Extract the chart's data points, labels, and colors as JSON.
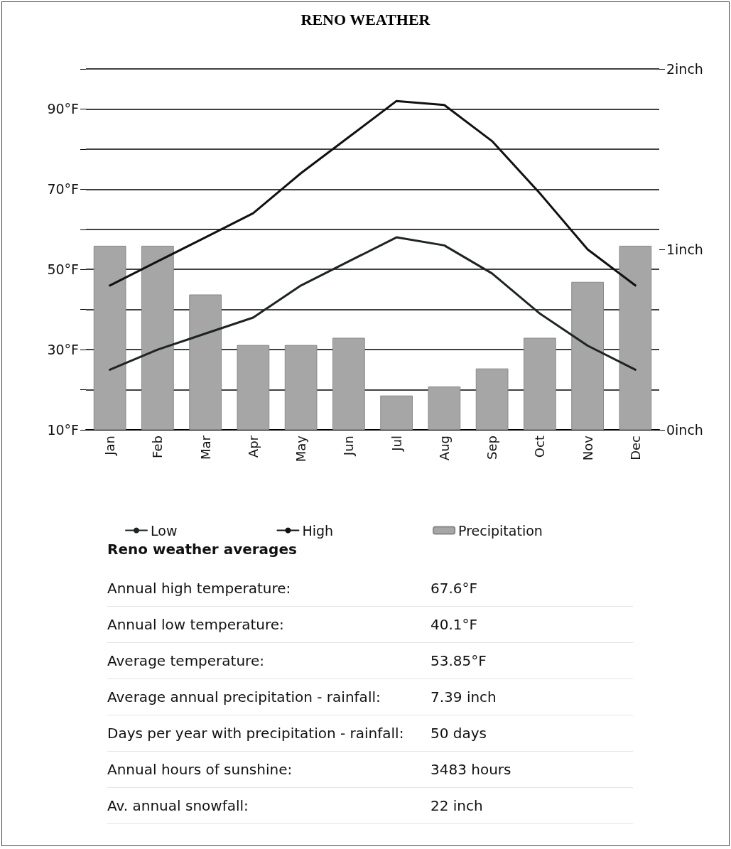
{
  "chart_data": {
    "type": "line",
    "title": "RENO WEATHER",
    "categories": [
      "Jan",
      "Feb",
      "Mar",
      "Apr",
      "May",
      "Jun",
      "Jul",
      "Aug",
      "Sep",
      "Oct",
      "Nov",
      "Dec"
    ],
    "series": [
      {
        "name": "Low",
        "color": "#1e2424",
        "values": [
          25,
          30,
          34,
          38,
          46,
          52,
          58,
          56,
          49,
          39,
          31,
          25
        ]
      },
      {
        "name": "High",
        "color": "#111111",
        "values": [
          46,
          52,
          58,
          64,
          74,
          83,
          92,
          91,
          82,
          69,
          55,
          46
        ]
      },
      {
        "name": "Precipitation",
        "type": "bar",
        "axis": "y2",
        "color": "#a6a6a6",
        "values": [
          1.02,
          1.02,
          0.75,
          0.47,
          0.47,
          0.51,
          0.19,
          0.24,
          0.34,
          0.51,
          0.82,
          1.02
        ]
      }
    ],
    "ylim": [
      10,
      100
    ],
    "yticks": [
      {
        "value": 10,
        "label": "10°F"
      },
      {
        "value": 20,
        "label": null
      },
      {
        "value": 30,
        "label": "30°F"
      },
      {
        "value": 40,
        "label": null
      },
      {
        "value": 50,
        "label": "50°F"
      },
      {
        "value": 60,
        "label": null
      },
      {
        "value": 70,
        "label": "70°F"
      },
      {
        "value": 80,
        "label": null
      },
      {
        "value": 90,
        "label": "90°F"
      },
      {
        "value": 100,
        "label": null
      }
    ],
    "y2lim": [
      0,
      2
    ],
    "y2ticks": [
      {
        "value": 0,
        "label": "0inch"
      },
      {
        "value": 1,
        "label": "1inch"
      },
      {
        "value": 2,
        "label": "2inch"
      }
    ],
    "grid": "y",
    "legend": "bottom",
    "marker": "none",
    "line_style": "solid",
    "annotations": [
      "Reno weather averages",
      "Annual high temperature:",
      "67.6°F",
      "Annual low temperature:",
      "40.1°F",
      "Average temperature:",
      "53.85°F",
      "Average annual precipitation - rainfall:",
      "7.39 inch",
      "Days per year with precipitation - rainfall:",
      "50 days",
      "Annual hours of sunshine:",
      "3483 hours",
      "Av. annual snowfall:",
      "22 inch"
    ]
  }
}
